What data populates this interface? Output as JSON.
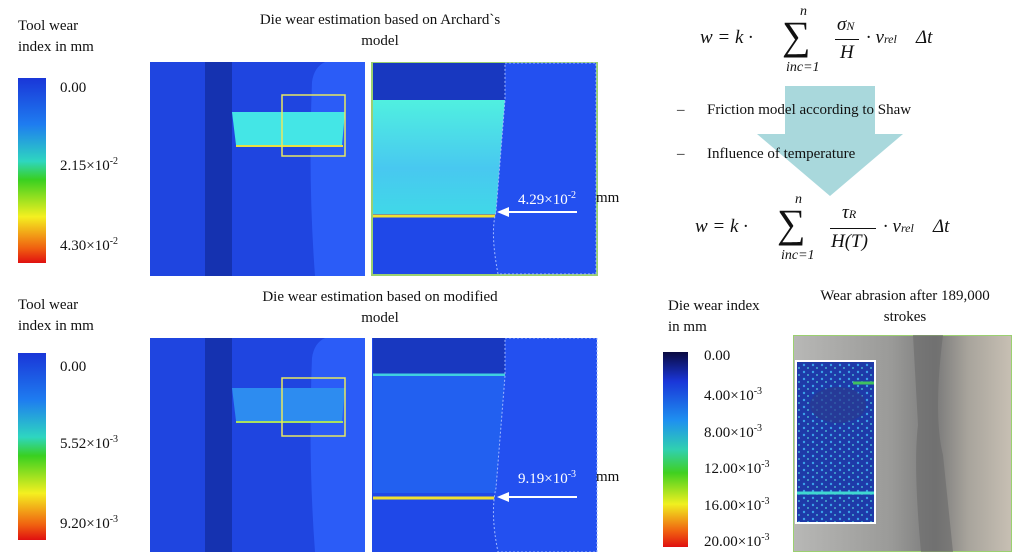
{
  "top": {
    "legend_title": "Tool wear index in mm",
    "legend_labels": [
      {
        "base": "0.00"
      },
      {
        "base": "2.15×10",
        "exp": "-2"
      },
      {
        "base": "4.30×10",
        "exp": "-2"
      }
    ],
    "title": "Die wear estimation based on Archard`s model",
    "annotation": {
      "base": "4.29×10",
      "exp": "-2",
      "unit": "mm"
    }
  },
  "bottom": {
    "legend_title": "Tool wear index in mm",
    "legend_labels": [
      {
        "base": "0.00"
      },
      {
        "base": "5.52×10",
        "exp": "-3"
      },
      {
        "base": "9.20×10",
        "exp": "-3"
      }
    ],
    "title": "Die wear estimation based on modified model",
    "annotation": {
      "base": "9.19×10",
      "exp": "-3",
      "unit": "mm"
    }
  },
  "formula_1": {
    "lhs": "w = k ·",
    "sum": "∑",
    "upper": "n",
    "lower": "inc=1",
    "num": "σ",
    "num_sub": "N",
    "den": "H",
    "mid": "· v",
    "mid_sub": "rel",
    "tail": "Δt"
  },
  "formula_2": {
    "lhs": "w = k ·",
    "sum": "∑",
    "upper": "n",
    "lower": "inc=1",
    "num": "τ",
    "num_sub": "R",
    "den": "H(T)",
    "mid": "· v",
    "mid_sub": "rel",
    "tail": "Δt"
  },
  "notes": {
    "bullet": "–",
    "items": [
      "Friction model according to Shaw",
      "Influence of temperature"
    ]
  },
  "photo": {
    "legend_title": "Die wear index in mm",
    "legend_labels": [
      {
        "base": "0.00"
      },
      {
        "base": "4.00×10",
        "exp": "-3"
      },
      {
        "base": "8.00×10",
        "exp": "-3"
      },
      {
        "base": "12.00×10",
        "exp": "-3"
      },
      {
        "base": "16.00×10",
        "exp": "-3"
      },
      {
        "base": "20.00×10",
        "exp": "-3"
      }
    ],
    "title": "Wear abrasion after 189,000 strokes"
  }
}
